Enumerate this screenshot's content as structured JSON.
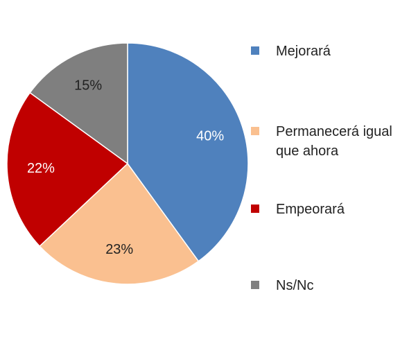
{
  "chart_data": {
    "type": "pie",
    "categories": [
      "Mejorará",
      "Permanecerá igual que ahora",
      "Empeorará",
      "Ns/Nc"
    ],
    "values": [
      40,
      23,
      22,
      15
    ],
    "value_labels": [
      "40%",
      "23%",
      "22%",
      "15%"
    ],
    "colors": [
      "#4f81bd",
      "#fac090",
      "#c00000",
      "#7f7f7f"
    ],
    "legend": "right"
  }
}
